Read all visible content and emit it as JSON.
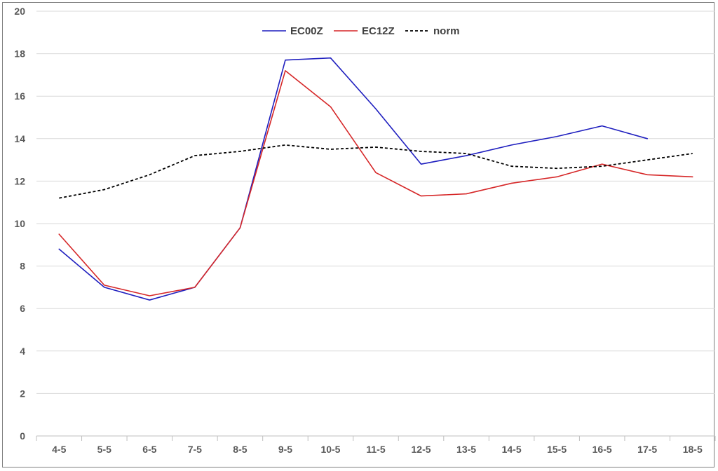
{
  "chart_data": {
    "type": "line",
    "title": "",
    "xlabel": "",
    "ylabel": "",
    "categories": [
      "4-5",
      "5-5",
      "6-5",
      "7-5",
      "8-5",
      "9-5",
      "10-5",
      "11-5",
      "12-5",
      "13-5",
      "14-5",
      "15-5",
      "16-5",
      "17-5",
      "18-5"
    ],
    "ylim": [
      0,
      20
    ],
    "yticks": [
      "0",
      "2",
      "4",
      "6",
      "8",
      "10",
      "12",
      "14",
      "16",
      "18",
      "20"
    ],
    "grid": true,
    "legend_position": "top-center",
    "series": [
      {
        "name": "EC00Z",
        "color": "#1f1fbf",
        "style": "solid",
        "values": [
          8.8,
          7.0,
          6.4,
          7.0,
          9.8,
          17.7,
          17.8,
          15.4,
          12.8,
          13.2,
          13.7,
          14.1,
          14.6,
          14.0,
          null
        ]
      },
      {
        "name": "EC12Z",
        "color": "#d62728",
        "style": "solid",
        "values": [
          9.5,
          7.1,
          6.6,
          7.0,
          9.8,
          17.2,
          15.5,
          12.4,
          11.3,
          11.4,
          11.9,
          12.2,
          12.8,
          12.3,
          12.2
        ]
      },
      {
        "name": "norm",
        "color": "#000000",
        "style": "dashed",
        "values": [
          11.2,
          11.6,
          12.3,
          13.2,
          13.4,
          13.7,
          13.5,
          13.6,
          13.4,
          13.3,
          12.7,
          12.6,
          12.7,
          13.0,
          13.3
        ]
      }
    ]
  }
}
